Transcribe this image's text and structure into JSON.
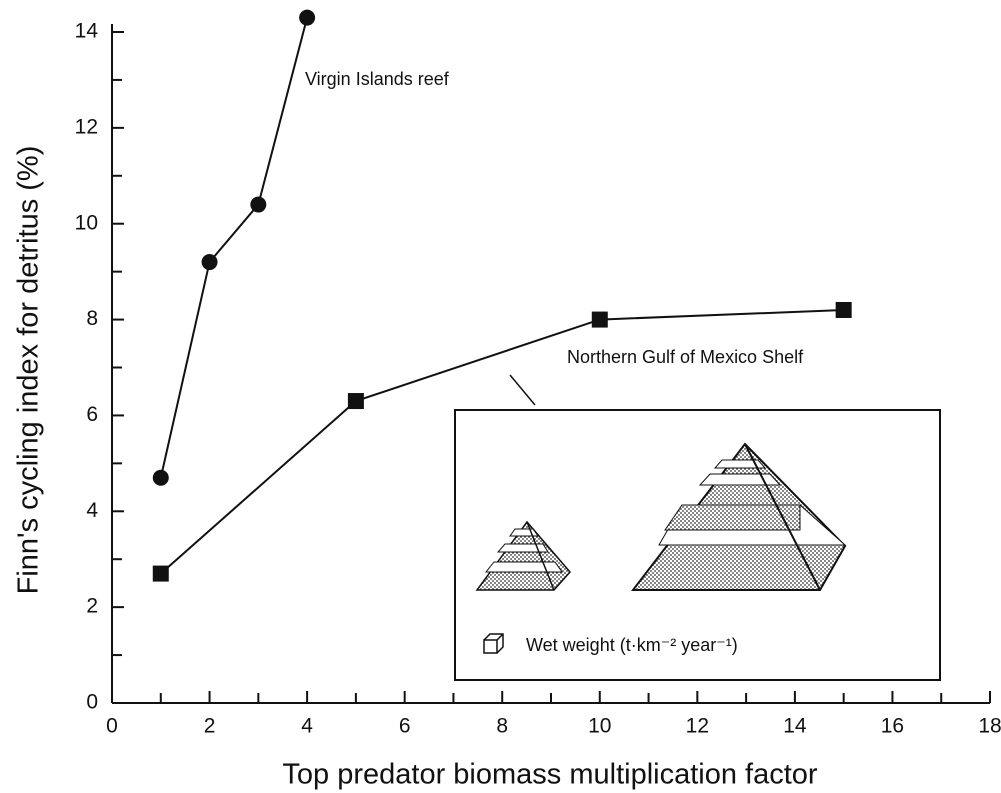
{
  "chart_data": {
    "type": "line",
    "x_label": "Top predator biomass multiplication factor",
    "y_label": "Finn's cycling index for detritus (%)",
    "xlim": [
      0,
      18
    ],
    "xticks": [
      0,
      2,
      4,
      6,
      8,
      10,
      12,
      14,
      16,
      18
    ],
    "x_minor_ticks": [
      1,
      3,
      5,
      7,
      9,
      11,
      13,
      15,
      17
    ],
    "ylim": [
      0,
      14
    ],
    "yticks": [
      0,
      2,
      4,
      6,
      8,
      10,
      12,
      14
    ],
    "y_minor_ticks": [
      1,
      3,
      5,
      7,
      9,
      11,
      13
    ],
    "grid": false,
    "series": [
      {
        "name": "Virgin Islands reef",
        "color": "#111111",
        "marker": "circle",
        "x": [
          1,
          2,
          3,
          4
        ],
        "values": [
          4.7,
          9.2,
          10.4,
          14.3
        ]
      },
      {
        "name": "Northern Gulf of Mexico Shelf",
        "color": "#111111",
        "marker": "square",
        "x": [
          1,
          5,
          10,
          15
        ],
        "values": [
          2.7,
          6.3,
          8.0,
          8.2
        ]
      }
    ],
    "inset_caption": "Wet weight (t·km⁻² year⁻¹)"
  }
}
